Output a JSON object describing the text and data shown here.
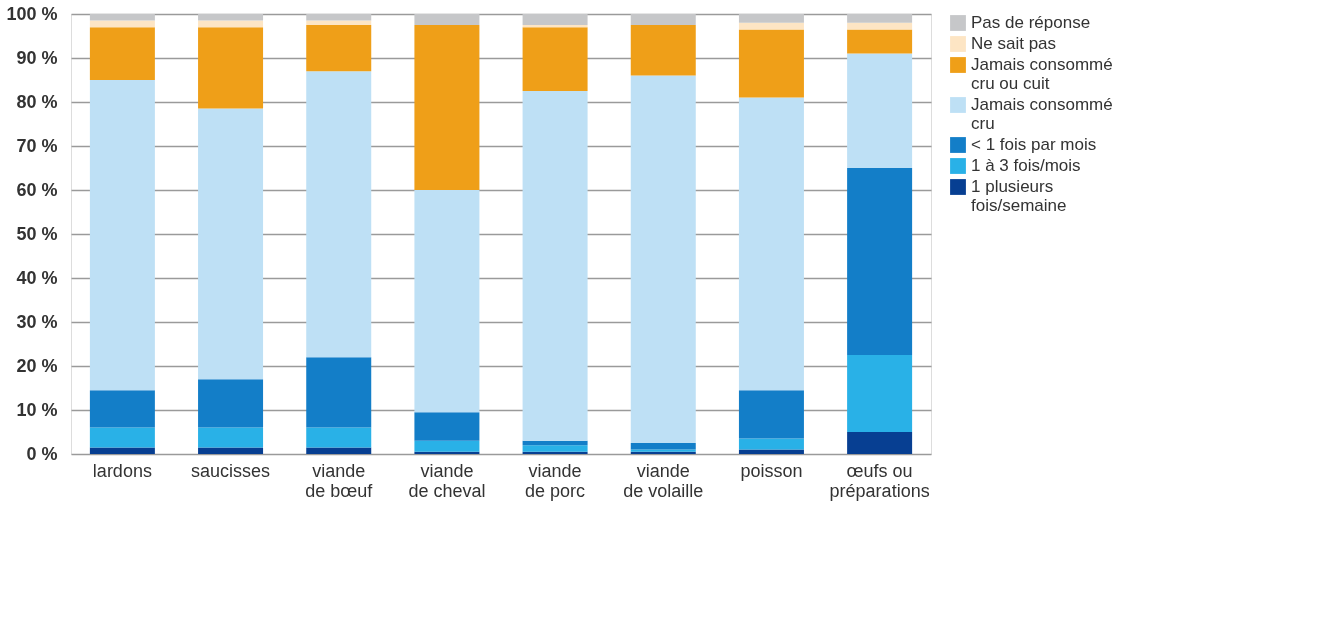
{
  "chart_data": {
    "type": "bar",
    "stacked": true,
    "categories": [
      "lardons",
      "saucisses",
      "viande\nde bœuf",
      "viande\nde cheval",
      "viande\nde porc",
      "viande\nde volaille",
      "poisson",
      "œufs ou\npréparations"
    ],
    "series": [
      {
        "name": "1 plusieurs\nfois/semaine",
        "color": "#073f92",
        "values": [
          1.5,
          1.5,
          1.5,
          0.5,
          0.5,
          0.5,
          1,
          5
        ]
      },
      {
        "name": "1 à 3 fois/mois",
        "color": "#29b1e7",
        "values": [
          4.5,
          4.5,
          4.5,
          2.5,
          1.5,
          0.5,
          2.5,
          17.5
        ]
      },
      {
        "name": "< 1 fois par mois",
        "color": "#137ec8",
        "values": [
          8.5,
          11,
          16,
          6.5,
          1,
          1.5,
          11,
          42.5
        ]
      },
      {
        "name": "Jamais consommé\ncru",
        "color": "#bee0f5",
        "values": [
          70.5,
          61.5,
          65,
          50.5,
          79.5,
          83.5,
          66.5,
          26
        ]
      },
      {
        "name": "Jamais consommé\ncru ou cuit",
        "color": "#ef9f18",
        "values": [
          12,
          18.5,
          10.5,
          37.5,
          14.5,
          11.5,
          15.5,
          5.5
        ]
      },
      {
        "name": "Ne sait pas",
        "color": "#fde5c4",
        "values": [
          1.5,
          1.5,
          1,
          0,
          0.5,
          0,
          1.5,
          1.5
        ]
      },
      {
        "name": "Pas de réponse",
        "color": "#c6c7c9",
        "values": [
          1.5,
          1.5,
          1.5,
          2.5,
          2.5,
          2.5,
          2,
          2
        ]
      }
    ],
    "ylim": [
      0,
      100
    ],
    "yticks": [
      {
        "value": 0,
        "label": "0 %"
      },
      {
        "value": 10,
        "label": "10 %"
      },
      {
        "value": 20,
        "label": "20 %"
      },
      {
        "value": 30,
        "label": "30 %"
      },
      {
        "value": 40,
        "label": "40 %"
      },
      {
        "value": 50,
        "label": "50 %"
      },
      {
        "value": 60,
        "label": "60 %"
      },
      {
        "value": 70,
        "label": "70 %"
      },
      {
        "value": 80,
        "label": "80 %"
      },
      {
        "value": 90,
        "label": "90 %"
      },
      {
        "value": 100,
        "label": "100 %"
      }
    ],
    "grid": "y",
    "legend": "right"
  }
}
